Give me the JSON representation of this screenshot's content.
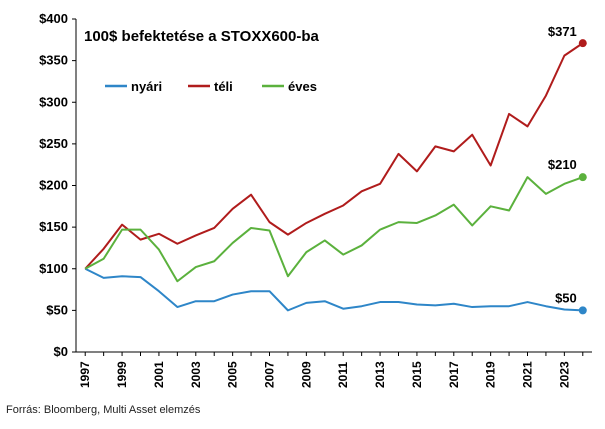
{
  "chart_data": {
    "type": "line",
    "title": "100$ befektetése a STOXX600-ba",
    "x": [
      1997,
      1998,
      1999,
      2000,
      2001,
      2002,
      2003,
      2004,
      2005,
      2006,
      2007,
      2008,
      2009,
      2010,
      2011,
      2012,
      2013,
      2014,
      2015,
      2016,
      2017,
      2018,
      2019,
      2020,
      2021,
      2022,
      2023,
      2024
    ],
    "x_tick_labels": [
      "1997",
      "1999",
      "2001",
      "2003",
      "2005",
      "2007",
      "2009",
      "2011",
      "2013",
      "2015",
      "2017",
      "2019",
      "2021",
      "2023"
    ],
    "y_tick_labels": [
      "$0",
      "$50",
      "$100",
      "$150",
      "$200",
      "$250",
      "$300",
      "$350",
      "$400"
    ],
    "ylim": [
      0,
      400
    ],
    "grid": false,
    "legend_position": "top-left",
    "series": [
      {
        "name": "nyári",
        "color": "#2e86c8",
        "values": [
          100,
          89,
          91,
          90,
          73,
          54,
          61,
          61,
          69,
          73,
          73,
          50,
          59,
          61,
          52,
          55,
          60,
          60,
          57,
          56,
          58,
          54,
          55,
          55,
          60,
          55,
          51,
          50
        ],
        "end_label": "$50"
      },
      {
        "name": "téli",
        "color": "#b01c1c",
        "values": [
          100,
          124,
          153,
          135,
          142,
          130,
          140,
          149,
          172,
          189,
          156,
          141,
          155,
          166,
          176,
          193,
          202,
          238,
          217,
          247,
          241,
          261,
          224,
          286,
          271,
          308,
          356,
          371
        ],
        "end_label": "$371"
      },
      {
        "name": "éves",
        "color": "#5bb13d",
        "values": [
          100,
          112,
          147,
          147,
          123,
          85,
          102,
          109,
          131,
          149,
          146,
          91,
          120,
          134,
          117,
          128,
          147,
          156,
          155,
          164,
          177,
          152,
          175,
          170,
          210,
          190,
          202,
          210
        ],
        "end_label": "$210"
      }
    ]
  },
  "source_note": "Forrás: Bloomberg, Multi Asset elemzés"
}
